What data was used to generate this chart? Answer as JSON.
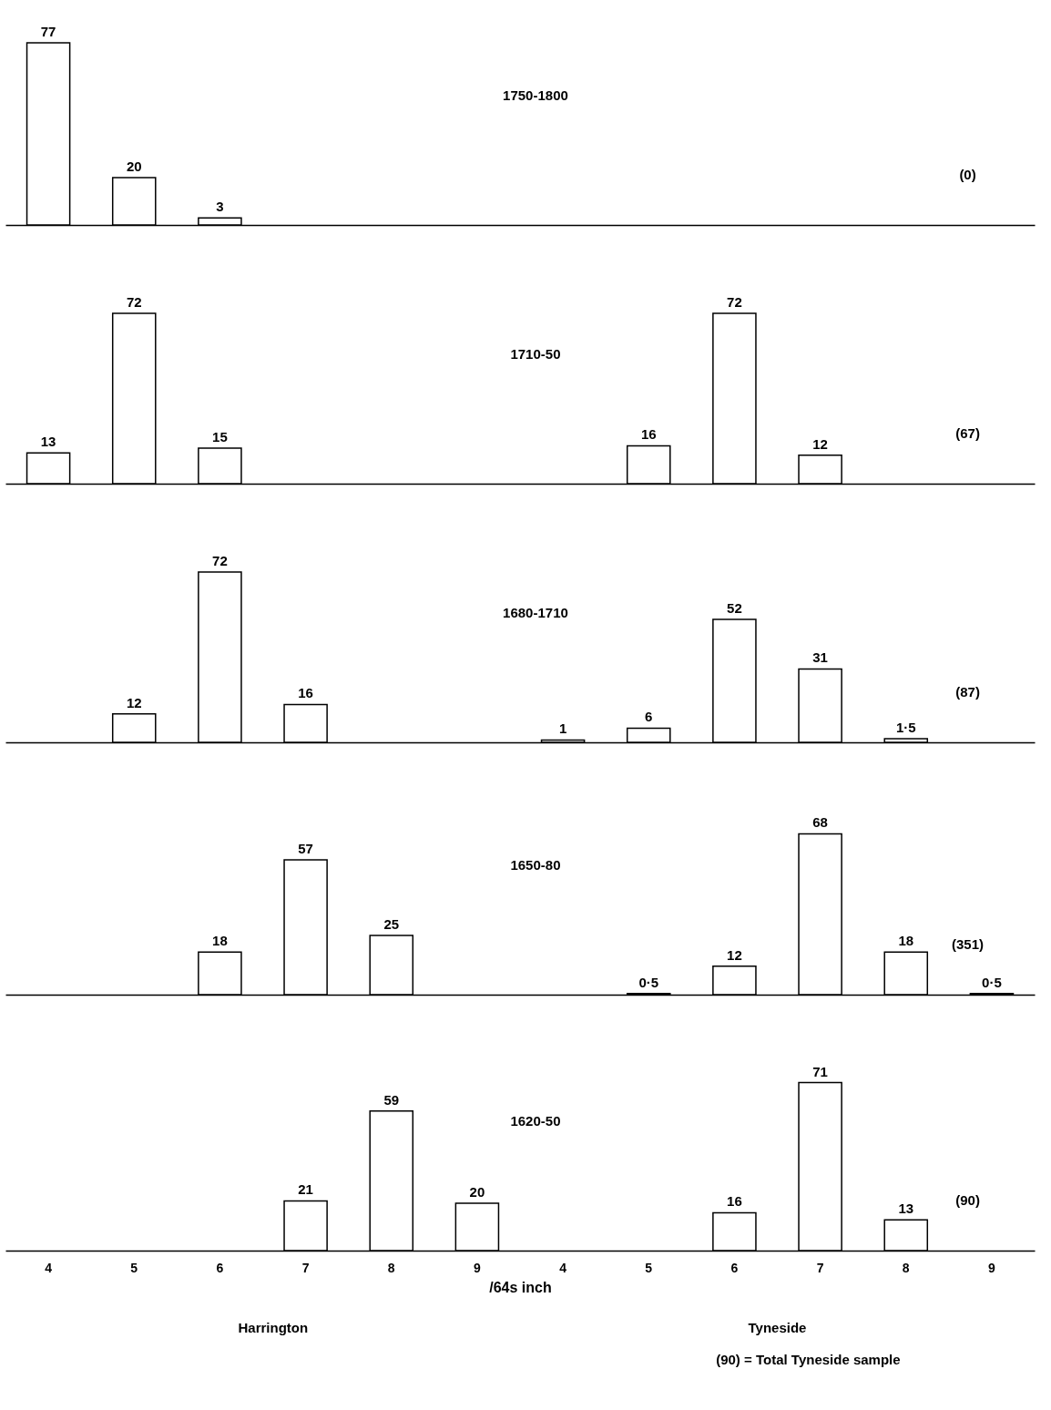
{
  "chart_data": [
    {
      "type": "bar",
      "title": "1750-1800",
      "categories": [
        "4",
        "5",
        "6",
        "7",
        "8",
        "9",
        "4",
        "5",
        "6",
        "7",
        "8",
        "9"
      ],
      "values": [
        77,
        20,
        3,
        null,
        null,
        null,
        null,
        null,
        null,
        null,
        null,
        null
      ],
      "value_labels": [
        "77",
        "20",
        "3",
        null,
        null,
        null,
        null,
        null,
        null,
        null,
        null,
        null
      ],
      "color": "#ffffff",
      "annotations": [
        "(0)"
      ],
      "tick_labels": false
    },
    {
      "type": "bar",
      "title": "1710-50",
      "categories": [
        "4",
        "5",
        "6",
        "7",
        "8",
        "9",
        "4",
        "5",
        "6",
        "7",
        "8",
        "9"
      ],
      "values": [
        13,
        72,
        15,
        null,
        null,
        null,
        null,
        16,
        72,
        12,
        null,
        null
      ],
      "value_labels": [
        "13",
        "72",
        "15",
        null,
        null,
        null,
        null,
        "16",
        "72",
        "12",
        null,
        null
      ],
      "color": "#ffffff",
      "annotations": [
        "(67)"
      ],
      "tick_labels": false
    },
    {
      "type": "bar",
      "title": "1680-1710",
      "categories": [
        "4",
        "5",
        "6",
        "7",
        "8",
        "9",
        "4",
        "5",
        "6",
        "7",
        "8",
        "9"
      ],
      "values": [
        null,
        12,
        72,
        16,
        null,
        null,
        1,
        6,
        52,
        31,
        1.5,
        null
      ],
      "value_labels": [
        null,
        "12",
        "72",
        "16",
        null,
        null,
        "1",
        "6",
        "52",
        "31",
        "1·5",
        null
      ],
      "color": "#ffffff",
      "annotations": [
        "(87)"
      ],
      "tick_labels": false
    },
    {
      "type": "bar",
      "title": "1650-80",
      "categories": [
        "4",
        "5",
        "6",
        "7",
        "8",
        "9",
        "4",
        "5",
        "6",
        "7",
        "8",
        "9"
      ],
      "values": [
        null,
        null,
        18,
        57,
        25,
        null,
        null,
        0.5,
        12,
        68,
        18,
        0.5
      ],
      "value_labels": [
        null,
        null,
        "18",
        "57",
        "25",
        null,
        null,
        "0·5",
        "12",
        "68",
        "18",
        "0·5"
      ],
      "color": "#ffffff",
      "annotations": [
        "(351)"
      ],
      "tick_labels": false
    },
    {
      "type": "bar",
      "title": "1620-50",
      "categories": [
        "4",
        "5",
        "6",
        "7",
        "8",
        "9",
        "4",
        "5",
        "6",
        "7",
        "8",
        "9"
      ],
      "values": [
        null,
        null,
        null,
        21,
        59,
        20,
        null,
        null,
        16,
        71,
        13,
        null
      ],
      "value_labels": [
        null,
        null,
        null,
        "21",
        "59",
        "20",
        null,
        null,
        "16",
        "71",
        "13",
        null
      ],
      "color": "#ffffff",
      "xlabel": "/64s inch",
      "annotations": [
        "(90)",
        "Harrington",
        "Tyneside",
        "(90) = Total Tyneside sample"
      ],
      "tick_labels": "x"
    }
  ]
}
